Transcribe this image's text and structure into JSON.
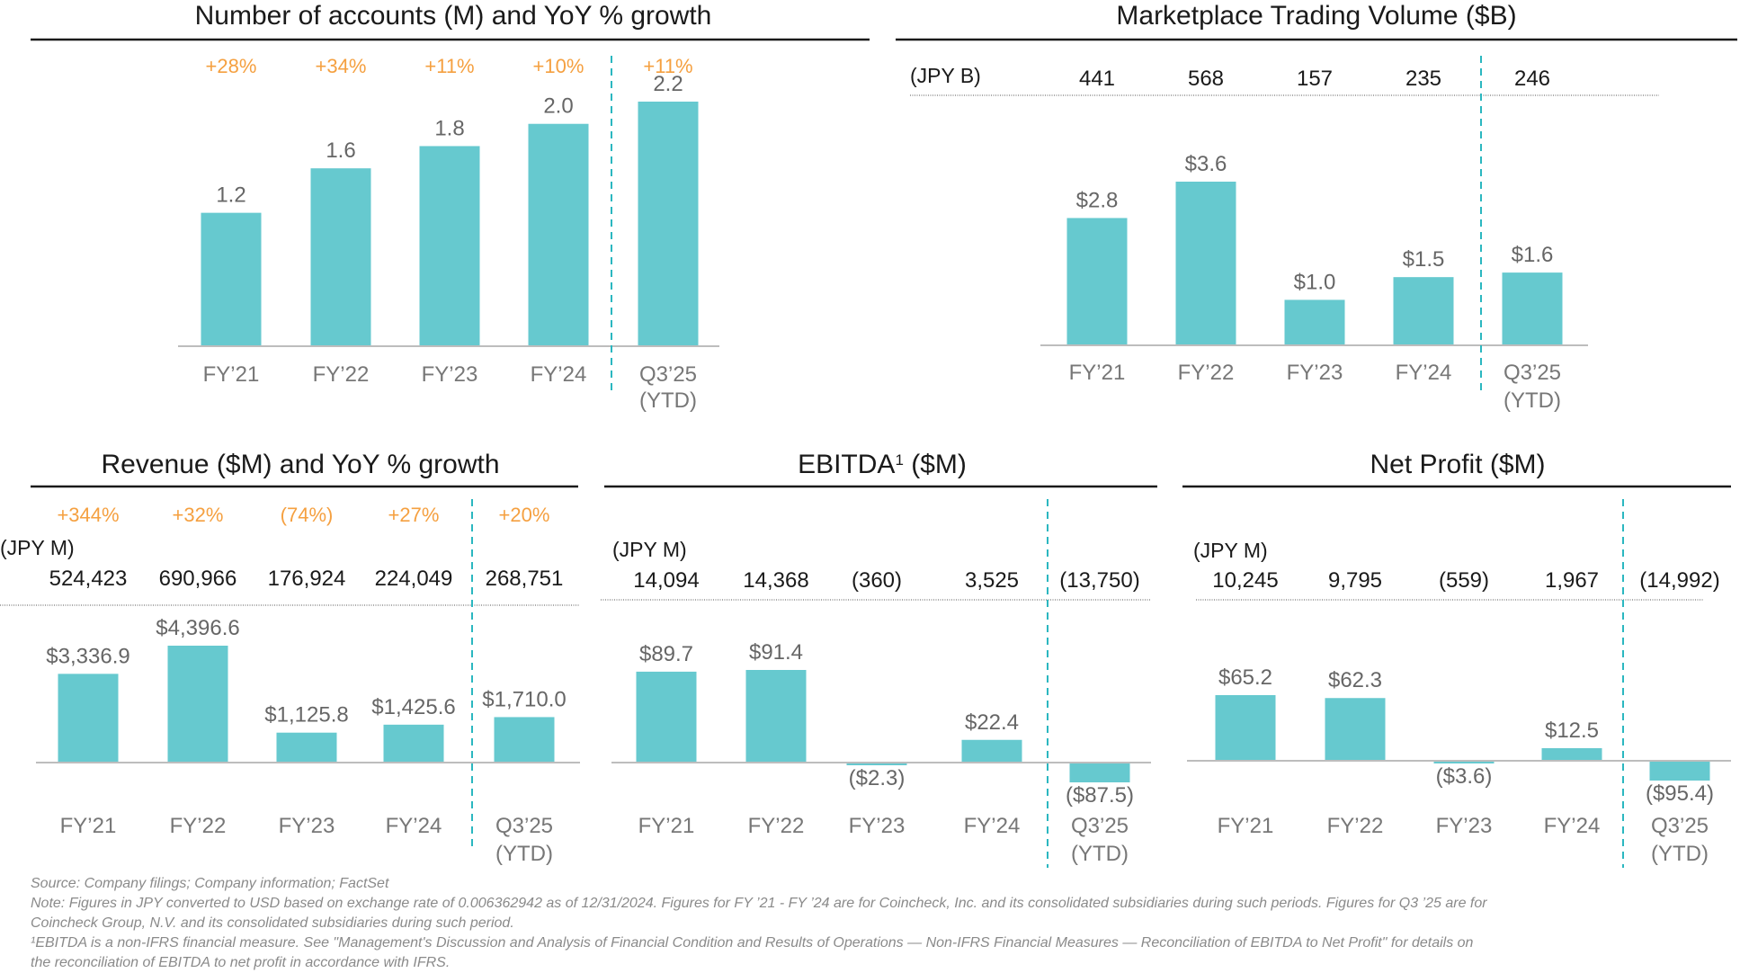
{
  "colors": {
    "bar": "#66C9CF",
    "divider": "#2BB7C0",
    "growth": "#F5A040",
    "value_label": "#666666",
    "axis_label": "#777777",
    "title": "#1a1a1a",
    "rule": "#1a1a1a"
  },
  "chart_data": [
    {
      "id": "accounts",
      "type": "bar",
      "title": "Number of accounts (M) and YoY % growth",
      "categories": [
        "FY’21",
        "FY’22",
        "FY’23",
        "FY’24",
        "Q3’25"
      ],
      "category_sublabels": [
        "",
        "",
        "",
        "",
        "(YTD)"
      ],
      "values": [
        1.2,
        1.6,
        1.8,
        2.0,
        2.2
      ],
      "value_labels": [
        "1.2",
        "1.6",
        "1.8",
        "2.0",
        "2.2"
      ],
      "growth_labels": [
        "+28%",
        "+34%",
        "+11%",
        "+10%",
        "+11%"
      ],
      "ylim": [
        0,
        2.2
      ]
    },
    {
      "id": "volume",
      "type": "bar",
      "title": "Marketplace Trading Volume ($B)",
      "categories": [
        "FY’21",
        "FY’22",
        "FY’23",
        "FY’24",
        "Q3’25"
      ],
      "category_sublabels": [
        "",
        "",
        "",
        "",
        "(YTD)"
      ],
      "values": [
        2.8,
        3.6,
        1.0,
        1.5,
        1.6
      ],
      "value_labels": [
        "$2.8",
        "$3.6",
        "$1.0",
        "$1.5",
        "$1.6"
      ],
      "jpy_unit": "(JPY B)",
      "jpy_values": [
        "441",
        "568",
        "157",
        "235",
        "246"
      ],
      "ylim": [
        0,
        3.6
      ]
    },
    {
      "id": "revenue",
      "type": "bar",
      "title": "Revenue ($M) and YoY % growth",
      "categories": [
        "FY’21",
        "FY’22",
        "FY’23",
        "FY’24",
        "Q3’25"
      ],
      "category_sublabels": [
        "",
        "",
        "",
        "",
        "(YTD)"
      ],
      "values": [
        3336.9,
        4396.6,
        1125.8,
        1425.6,
        1710.0
      ],
      "value_labels": [
        "$3,336.9",
        "$4,396.6",
        "$1,125.8",
        "$1,425.6",
        "$1,710.0"
      ],
      "growth_labels": [
        "+344%",
        "+32%",
        "(74%)",
        "+27%",
        "+20%"
      ],
      "jpy_unit": "(JPY M)",
      "jpy_values": [
        "524,423",
        "690,966",
        "176,924",
        "224,049",
        "268,751"
      ],
      "ylim": [
        0,
        4396.6
      ]
    },
    {
      "id": "ebitda",
      "type": "bar",
      "title": "EBITDA",
      "title_sup": "1",
      "title_suffix": " ($M)",
      "categories": [
        "FY’21",
        "FY’22",
        "FY’23",
        "FY’24",
        "Q3’25"
      ],
      "category_sublabels": [
        "",
        "",
        "",
        "",
        "(YTD)"
      ],
      "values": [
        89.7,
        91.4,
        -2.3,
        22.4,
        -87.5
      ],
      "value_labels": [
        "$89.7",
        "$91.4",
        "($2.3)",
        "$22.4",
        "($87.5)"
      ],
      "jpy_unit": "(JPY M)",
      "jpy_values": [
        "14,094",
        "14,368",
        "(360)",
        "3,525",
        "(13,750)"
      ],
      "ylim": [
        -87.5,
        91.4
      ]
    },
    {
      "id": "netprofit",
      "type": "bar",
      "title": "Net Profit ($M)",
      "categories": [
        "FY’21",
        "FY’22",
        "FY’23",
        "FY’24",
        "Q3’25"
      ],
      "category_sublabels": [
        "",
        "",
        "",
        "",
        "(YTD)"
      ],
      "values": [
        65.2,
        62.3,
        -3.6,
        12.5,
        -95.4
      ],
      "value_labels": [
        "$65.2",
        "$62.3",
        "($3.6)",
        "$12.5",
        "($95.4)"
      ],
      "jpy_unit": "(JPY M)",
      "jpy_values": [
        "10,245",
        "9,795",
        "(559)",
        "1,967",
        "(14,992)"
      ],
      "ylim": [
        -95.4,
        65.2
      ]
    }
  ],
  "footnotes": {
    "source": "Source: Company filings; Company information; FactSet",
    "note_line1": "Note: Figures in JPY converted to USD based on exchange rate of 0.006362942 as of 12/31/2024. Figures for FY ’21 - FY ’24 are for Coincheck, Inc. and its consolidated subsidiaries during such periods. Figures for Q3 ’25 are for",
    "note_line2": "Coincheck Group, N.V. and its consolidated subsidiaries during such period.",
    "ebitda_line1": "¹EBITDA is a non-IFRS financial measure. See \"Management's Discussion and Analysis of Financial Condition and Results of Operations — Non-IFRS Financial Measures — Reconciliation of EBITDA to Net Profit\" for details on",
    "ebitda_line2": "the reconciliation of EBITDA to net profit in accordance with IFRS."
  }
}
